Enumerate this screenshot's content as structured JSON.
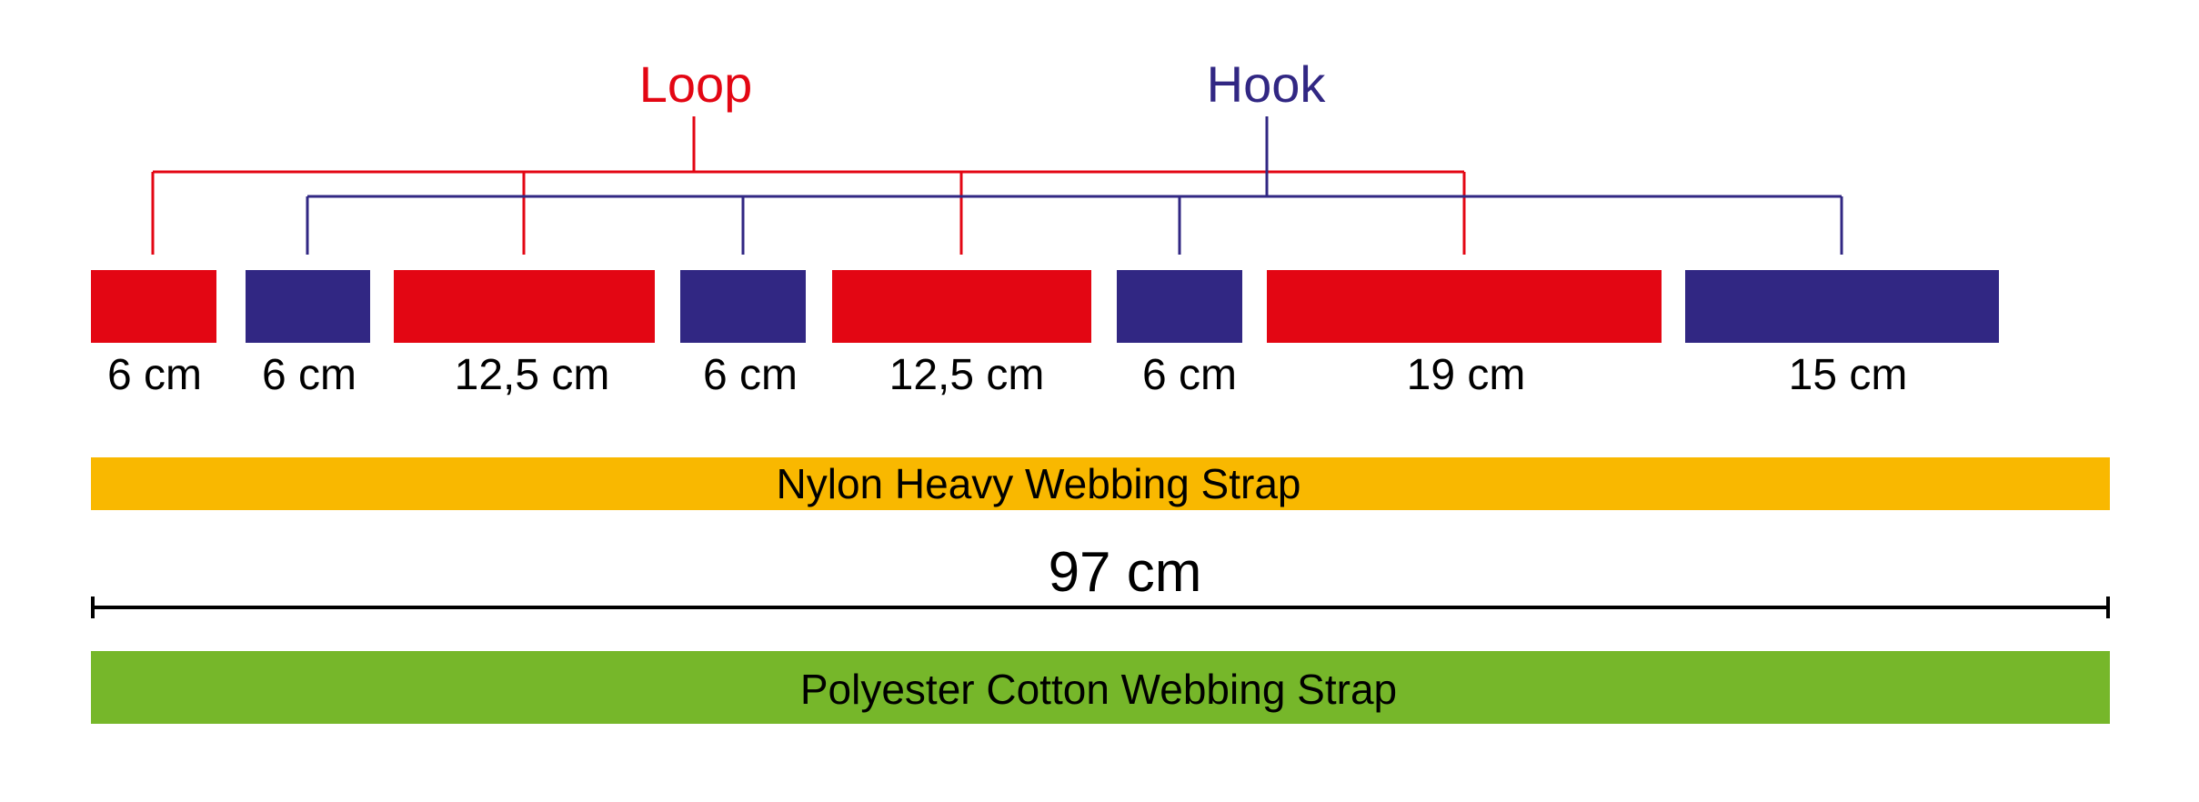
{
  "colors": {
    "loop": "#e30613",
    "hook": "#312783",
    "nylon_strap": "#f9b800",
    "polyester_strap": "#76b72a",
    "measure_line": "#000000",
    "text": "#000000"
  },
  "legend": {
    "loop_label": "Loop",
    "hook_label": "Hook"
  },
  "segments": [
    {
      "type": "loop",
      "length_cm": 6,
      "label": "6 cm"
    },
    {
      "type": "hook",
      "length_cm": 6,
      "label": "6 cm"
    },
    {
      "type": "loop",
      "length_cm": 12.5,
      "label": "12,5 cm"
    },
    {
      "type": "hook",
      "length_cm": 6,
      "label": "6 cm"
    },
    {
      "type": "loop",
      "length_cm": 12.5,
      "label": "12,5 cm"
    },
    {
      "type": "hook",
      "length_cm": 6,
      "label": "6 cm"
    },
    {
      "type": "loop",
      "length_cm": 19,
      "label": "19 cm"
    },
    {
      "type": "hook",
      "length_cm": 15,
      "label": "15 cm"
    }
  ],
  "straps": {
    "nylon_label": "Nylon Heavy Webbing Strap",
    "polyester_label": "Polyester Cotton Webbing Strap"
  },
  "total_length": {
    "value_cm": 97,
    "label": "97 cm"
  }
}
